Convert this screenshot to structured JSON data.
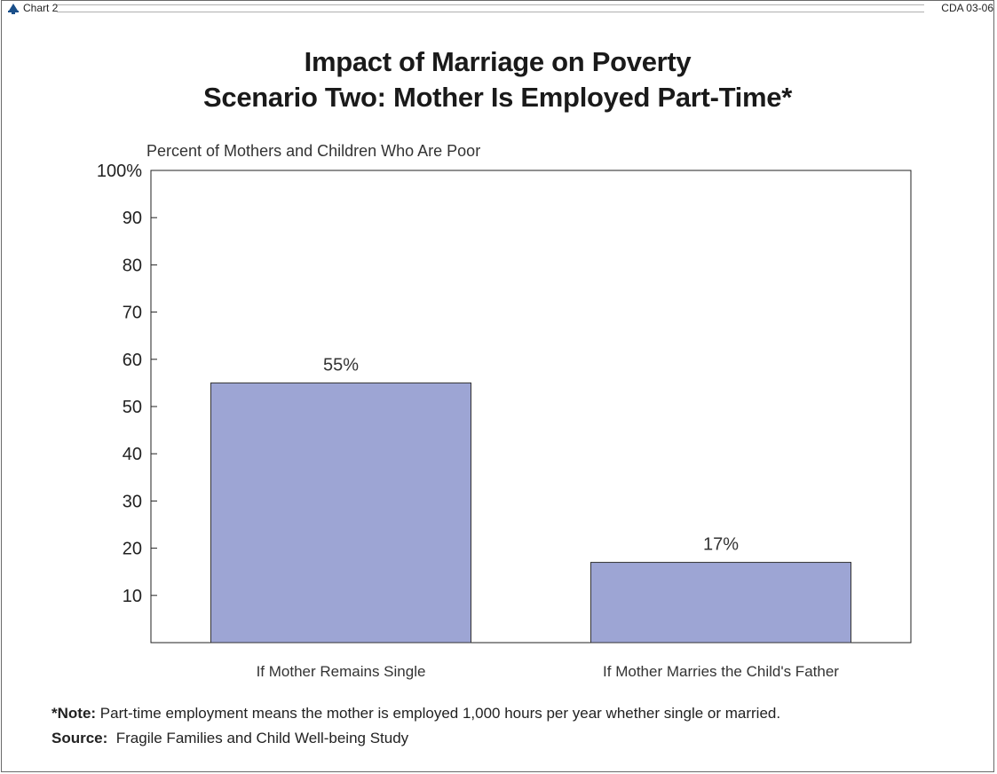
{
  "header": {
    "chart_label": "Chart 2",
    "doc_id": "CDA 03-06"
  },
  "chart_data": {
    "type": "bar",
    "title": "Impact of Marriage on Poverty",
    "subtitle": "Scenario Two: Mother Is Employed Part-Time*",
    "ylabel": "Percent of Mothers and Children Who Are Poor",
    "xlabel": "",
    "categories": [
      "If Mother Remains Single",
      "If Mother Marries the Child's Father"
    ],
    "values": [
      55,
      17
    ],
    "data_labels": [
      "55%",
      "17%"
    ],
    "ylim": [
      0,
      100
    ],
    "yticks": [
      10,
      20,
      30,
      40,
      50,
      60,
      70,
      80,
      90,
      100
    ],
    "ytick_labels": [
      "10",
      "20",
      "30",
      "40",
      "50",
      "60",
      "70",
      "80",
      "90",
      "100%"
    ],
    "grid": false,
    "bar_color": "#9da5d4"
  },
  "footer": {
    "note_label": "*Note:",
    "note_text": " Part-time employment means the mother is employed 1,000 hours per year whether single or married.",
    "source_label": "Source:",
    "source_text": "  Fragile Families and Child Well-being Study"
  }
}
